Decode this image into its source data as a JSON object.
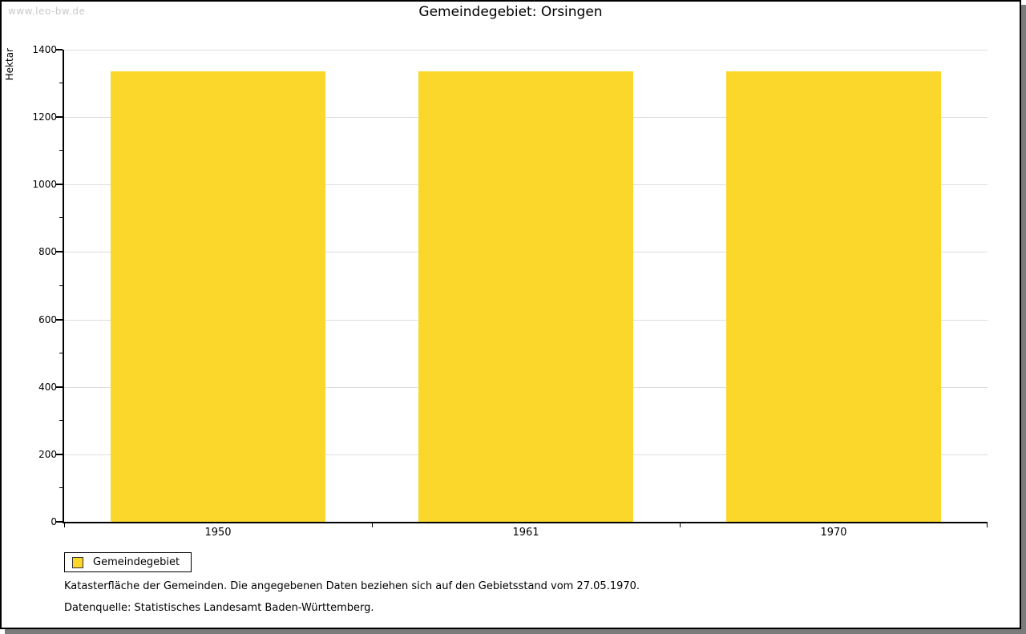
{
  "watermark": "www.leo-bw.de",
  "header": {
    "title": "Gemeindegebiet: Orsingen"
  },
  "chart_data": {
    "type": "bar",
    "title": "Gemeindegebiet: Orsingen",
    "xlabel": "",
    "ylabel": "Hektar",
    "categories": [
      "1950",
      "1961",
      "1970"
    ],
    "series": [
      {
        "name": "Gemeindegebiet",
        "color": "#FCD72B",
        "values": [
          1335,
          1335,
          1335
        ]
      }
    ],
    "ylim": [
      0,
      1400
    ],
    "ytick_major_step": 200,
    "ytick_minor_step": 100,
    "grid": "horizontal-major",
    "legend_position": "bottom-left",
    "bar_width_fraction": 0.7
  },
  "legend": {
    "label": "Gemeindegebiet",
    "swatch_color": "#FCD72B"
  },
  "footer": {
    "line1": "Katasterfläche der Gemeinden. Die angegebenen Daten beziehen sich auf den Gebietsstand vom 27.05.1970.",
    "line2": "Datenquelle: Statistisches Landesamt Baden-Württemberg."
  },
  "colors": {
    "bar": "#FCD72B",
    "grid": "#DDDDDD",
    "axis": "#000000",
    "watermark": "#C9C9C9",
    "shadow": "#7B7B7B"
  }
}
